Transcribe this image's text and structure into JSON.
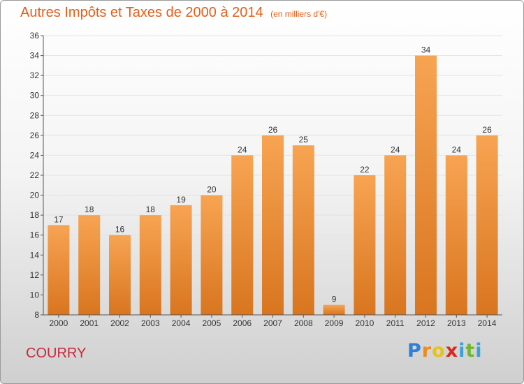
{
  "header": {
    "title": "Autres Impôts et Taxes de 2000 à 2014",
    "unit": "(en milliers d'€)"
  },
  "footer": {
    "commune": "COURRY",
    "logo": {
      "letters": [
        "P",
        "r",
        "o",
        "x",
        "i",
        "t",
        "i"
      ],
      "colors": [
        "#2e7fd6",
        "#f08a1c",
        "#e8c21a",
        "#d8281f",
        "#3aa2d8",
        "#6fb82a",
        "#3aa2d8"
      ]
    }
  },
  "colors": {
    "bar_top": "#f7a452",
    "bar_bottom": "#d9751f",
    "text": "#333333",
    "grid": "#e3e3e3",
    "axis": "#555555"
  },
  "chart_data": {
    "type": "bar",
    "categories": [
      "2000",
      "2001",
      "2002",
      "2003",
      "2004",
      "2005",
      "2006",
      "2007",
      "2008",
      "2009",
      "2010",
      "2011",
      "2012",
      "2013",
      "2014"
    ],
    "values": [
      17,
      18,
      16,
      18,
      19,
      20,
      24,
      26,
      25,
      9,
      22,
      24,
      34,
      24,
      26
    ],
    "title": "Autres Impôts et Taxes de 2000 à 2014",
    "ylim": [
      8,
      36
    ],
    "yticks": [
      8,
      10,
      12,
      14,
      16,
      18,
      20,
      22,
      24,
      26,
      28,
      30,
      32,
      34,
      36
    ],
    "grid": true
  }
}
